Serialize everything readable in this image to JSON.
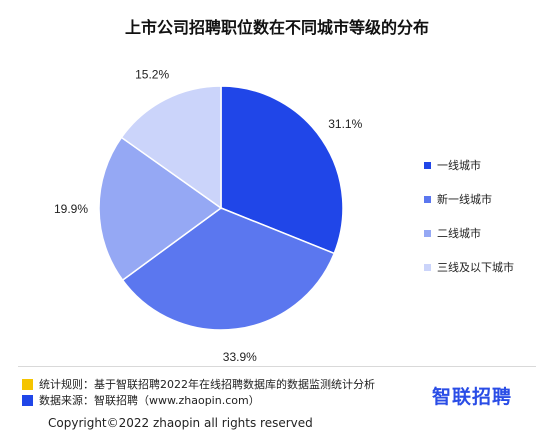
{
  "chart_data": {
    "type": "pie",
    "title": "上市公司招聘职位数在不同城市等级的分布",
    "categories": [
      "一线城市",
      "新一线城市",
      "二线城市",
      "三线及以下城市"
    ],
    "values": [
      31.1,
      33.9,
      19.9,
      15.2
    ],
    "value_labels": [
      "31.1%",
      "33.9%",
      "19.9%",
      "15.2%"
    ],
    "colors": [
      "#2046e8",
      "#5b77ef",
      "#95a8f4",
      "#cbd4fa"
    ],
    "legend_position": "right"
  },
  "footer": {
    "rule_label": "统计规则：基于智联招聘2022年在线招聘数据库的数据监测统计分析",
    "rule_color": "#f5c400",
    "source_label": "数据来源：智联招聘（www.zhaopin.com）",
    "source_color": "#2046e8",
    "brand": "智联招聘",
    "copyright": "Copyright©2022 zhaopin all rights reserved"
  }
}
